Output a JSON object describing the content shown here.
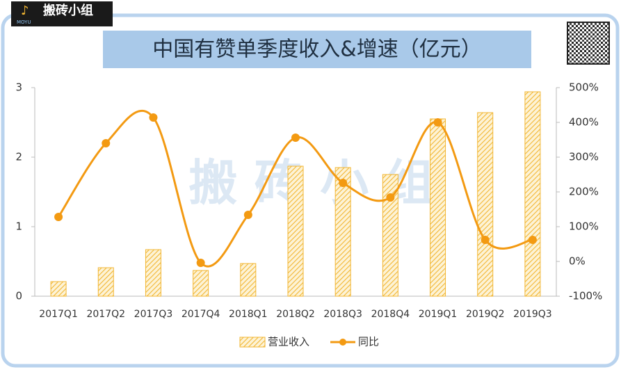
{
  "logo": {
    "text": "搬砖小组",
    "sub": "MOYU"
  },
  "chart_data": {
    "type": "bar",
    "title": "中国有赞单季度收入&增速（亿元）",
    "watermark": "搬 砖 小 组",
    "categories": [
      "2017Q1",
      "2017Q2",
      "2017Q3",
      "2017Q4",
      "2018Q1",
      "2018Q2",
      "2018Q3",
      "2018Q4",
      "2019Q1",
      "2019Q2",
      "2019Q3"
    ],
    "series": [
      {
        "name": "营业收入",
        "type": "bar",
        "color": "#f2b632",
        "values": [
          0.21,
          0.41,
          0.67,
          0.37,
          0.47,
          1.87,
          1.85,
          1.75,
          2.55,
          2.64,
          2.94
        ]
      },
      {
        "name": "同比",
        "type": "line",
        "axis": "y2",
        "color": "#f39a12",
        "values": [
          128,
          340,
          414,
          -4,
          134,
          356,
          226,
          184,
          400,
          62,
          62
        ]
      }
    ],
    "ylim": [
      0,
      3
    ],
    "yticks": [
      0,
      1,
      2,
      3
    ],
    "y2lim": [
      -100,
      500
    ],
    "y2ticks": [
      {
        "value": -100,
        "label": "-100%"
      },
      {
        "value": 0,
        "label": "0%"
      },
      {
        "value": 100,
        "label": "100%"
      },
      {
        "value": 200,
        "label": "200%"
      },
      {
        "value": 300,
        "label": "300%"
      },
      {
        "value": 400,
        "label": "400%"
      },
      {
        "value": 500,
        "label": "500%"
      }
    ],
    "grid": false,
    "legend": "bottom"
  }
}
